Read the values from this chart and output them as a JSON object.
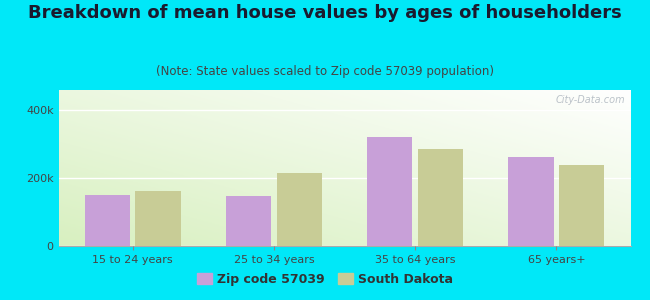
{
  "title": "Breakdown of mean house values by ages of householders",
  "subtitle": "(Note: State values scaled to Zip code 57039 population)",
  "categories": [
    "15 to 24 years",
    "25 to 34 years",
    "35 to 64 years",
    "65 years+"
  ],
  "zip_values": [
    150000,
    148000,
    320000,
    262000
  ],
  "state_values": [
    162000,
    215000,
    285000,
    240000
  ],
  "zip_color": "#c8a0d8",
  "state_color": "#c8cc96",
  "background_outer": "#00e8f8",
  "ylim": [
    0,
    460000
  ],
  "yticks": [
    0,
    200000,
    400000
  ],
  "ytick_labels": [
    "0",
    "200k",
    "400k"
  ],
  "legend_zip": "Zip code 57039",
  "legend_state": "South Dakota",
  "title_fontsize": 13,
  "subtitle_fontsize": 8.5,
  "tick_fontsize": 8,
  "legend_fontsize": 9
}
